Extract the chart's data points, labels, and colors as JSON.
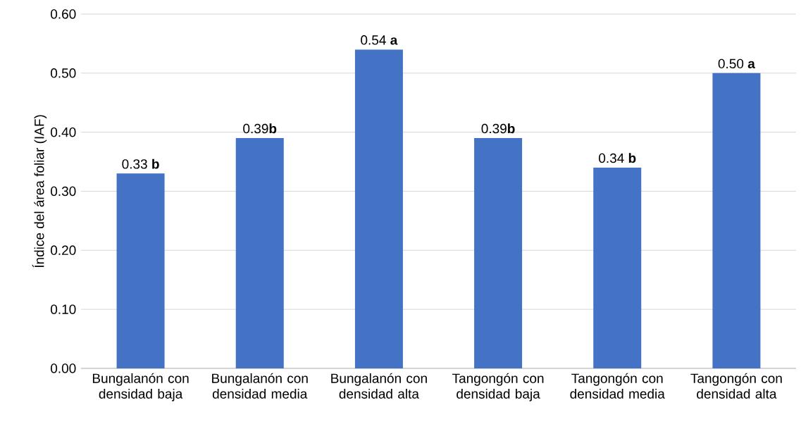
{
  "chart_data": {
    "type": "bar",
    "ylabel": "Índice del área foliar (IAF)",
    "categories": [
      "Bungalanón con densidad baja",
      "Bungalanón con densidad media",
      "Bungalanón con densidad alta",
      "Tangongón con densidad baja",
      "Tangongón con densidad media",
      "Tangongón con densidad alta"
    ],
    "values": [
      0.33,
      0.39,
      0.54,
      0.39,
      0.34,
      0.5
    ],
    "value_labels": [
      "0.33 **b**",
      "0.39**b**",
      "0.54 **a**",
      "0.39**b**",
      "0.34 **b**",
      "0.50 **a**"
    ],
    "color": "#4472c4",
    "ylim": [
      0,
      0.6
    ],
    "yticks": [
      {
        "value": 0,
        "label": "0.00"
      },
      {
        "value": 0.1,
        "label": "0.10"
      },
      {
        "value": 0.2,
        "label": "0.20"
      },
      {
        "value": 0.3,
        "label": "0.30"
      },
      {
        "value": 0.4,
        "label": "0.40"
      },
      {
        "value": 0.5,
        "label": "0.50"
      },
      {
        "value": 0.6,
        "label": "0.60"
      }
    ],
    "grid": "y"
  }
}
